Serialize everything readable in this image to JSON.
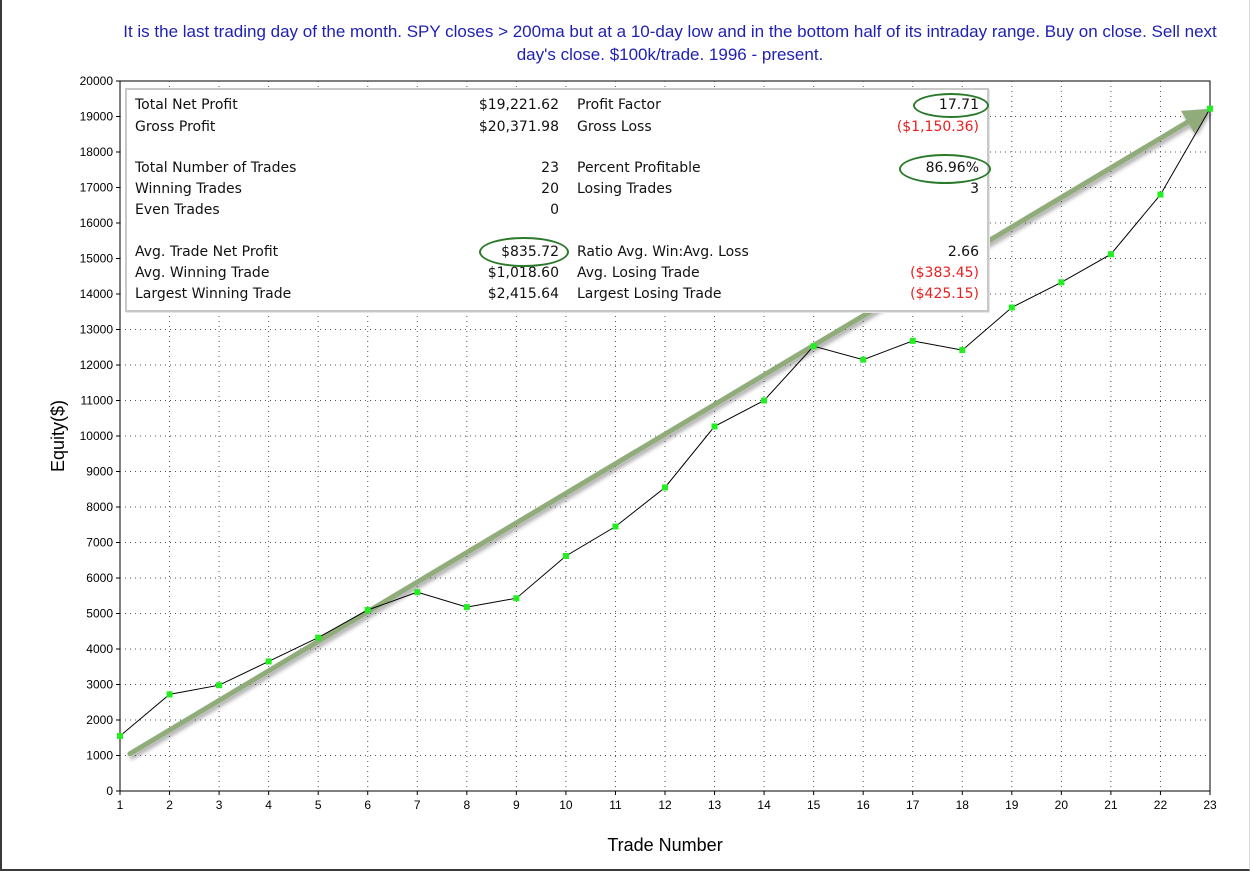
{
  "title": "It is the last trading day of the month. SPY closes > 200ma but at a 10-day low and in the bottom half of its intraday range. Buy on close. Sell next day's close. $100k/trade. 1996 - present.",
  "stats": {
    "rows": [
      {
        "left_label": "Total Net Profit",
        "left_value": "$19,221.62",
        "right_label": "Profit Factor",
        "right_value": "17.71"
      },
      {
        "left_label": "Gross Profit",
        "left_value": "$20,371.98",
        "right_label": "Gross Loss",
        "right_value": "($1,150.36)"
      },
      {
        "left_label": "Total Number of Trades",
        "left_value": "23",
        "right_label": "Percent Profitable",
        "right_value": "86.96%"
      },
      {
        "left_label": "Winning Trades",
        "left_value": "20",
        "right_label": "Losing Trades",
        "right_value": "3"
      },
      {
        "left_label": "Even Trades",
        "left_value": "0",
        "right_label": "",
        "right_value": ""
      },
      {
        "left_label": "Avg. Trade Net Profit",
        "left_value": "$835.72",
        "right_label": "Ratio Avg. Win:Avg. Loss",
        "right_value": "2.66"
      },
      {
        "left_label": "Avg. Winning Trade",
        "left_value": "$1,018.60",
        "right_label": "Avg. Losing Trade",
        "right_value": "($383.45)"
      },
      {
        "left_label": "Largest Winning Trade",
        "left_value": "$2,415.64",
        "right_label": "Largest Losing Trade",
        "right_value": "($425.15)"
      }
    ],
    "negative_color": "#e82020",
    "highlight_color": "#2b7a2b"
  },
  "chart_data": {
    "type": "line",
    "xlabel": "Trade Number",
    "ylabel": "Equity($)",
    "xlim": [
      1,
      23
    ],
    "ylim": [
      0,
      20000
    ],
    "x_ticks": [
      1,
      2,
      3,
      4,
      5,
      6,
      7,
      8,
      9,
      10,
      11,
      12,
      13,
      14,
      15,
      16,
      17,
      18,
      19,
      20,
      21,
      22,
      23
    ],
    "y_ticks": [
      0,
      1000,
      2000,
      3000,
      4000,
      5000,
      6000,
      7000,
      8000,
      9000,
      10000,
      11000,
      12000,
      13000,
      14000,
      15000,
      16000,
      17000,
      18000,
      19000,
      20000
    ],
    "grid": true,
    "series": [
      {
        "x": [
          1,
          2,
          3,
          4,
          5,
          6,
          7,
          8,
          9,
          10,
          11,
          12,
          13,
          14,
          15,
          16,
          17,
          18,
          19,
          20,
          21,
          22,
          23
        ],
        "y": [
          1550,
          2720,
          2980,
          3650,
          4320,
          5100,
          5600,
          5180,
          5430,
          6620,
          7450,
          8550,
          10270,
          11000,
          12530,
          12150,
          12680,
          12420,
          13620,
          14330,
          15120,
          16800,
          19220
        ],
        "line_color": "#000000",
        "marker_color": "#22ee22"
      }
    ],
    "trend_arrow": {
      "start": [
        1.2,
        1050
      ],
      "end": [
        23,
        19220
      ],
      "color": "#8fac7a"
    }
  }
}
